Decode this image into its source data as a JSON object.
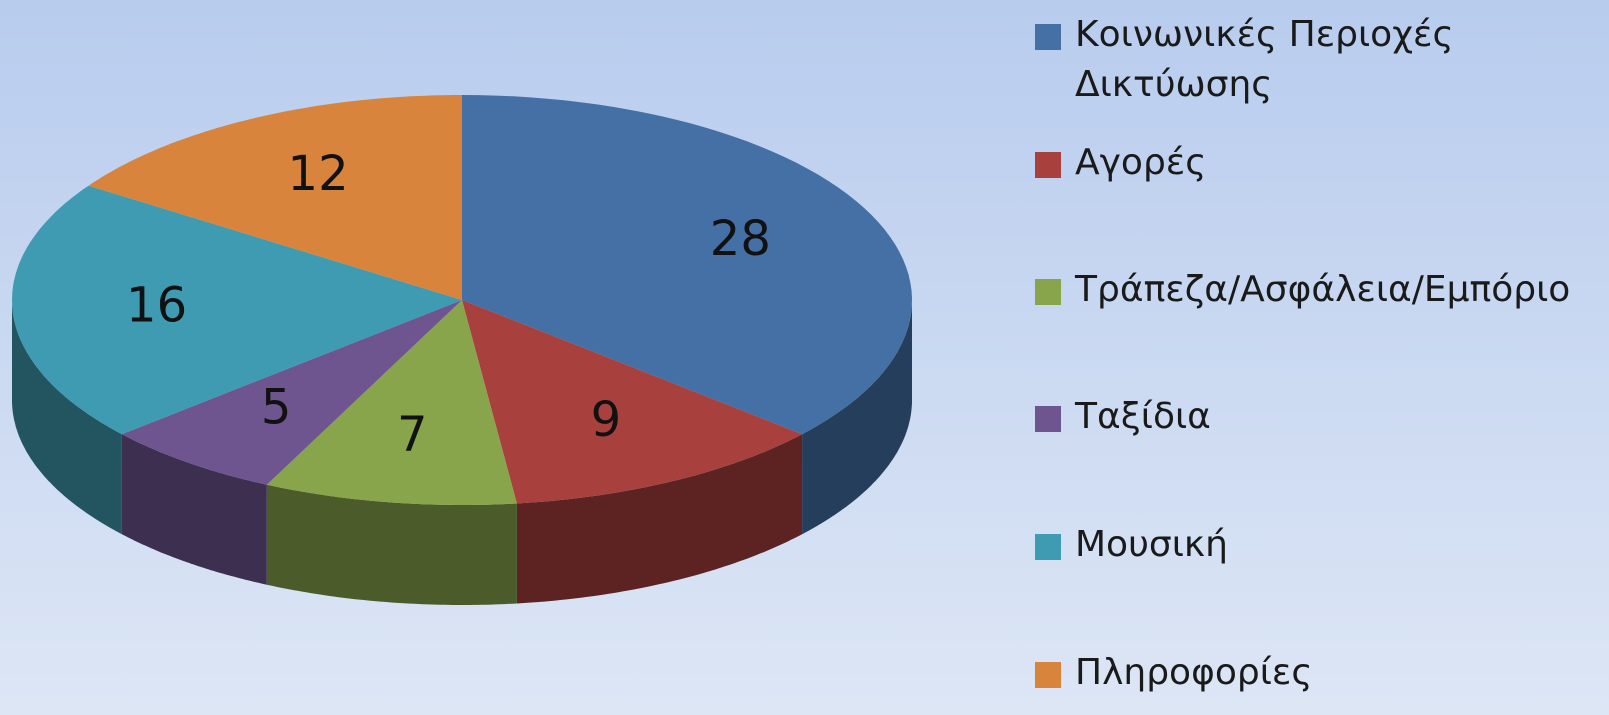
{
  "chart_data": {
    "type": "pie",
    "categories": [
      "Κοινωνικές Περιοχές Δικτύωσης",
      "Αγορές",
      "Τράπεζα/Ασφάλεια/Εμπόριο",
      "Ταξίδια",
      "Μουσική",
      "Πληροφορίες"
    ],
    "values": [
      28,
      9,
      7,
      5,
      16,
      12
    ],
    "colors": [
      "#4470a5",
      "#a8403d",
      "#88a54c",
      "#6e558f",
      "#3f9bb1",
      "#d9843d"
    ],
    "legend": "right"
  }
}
